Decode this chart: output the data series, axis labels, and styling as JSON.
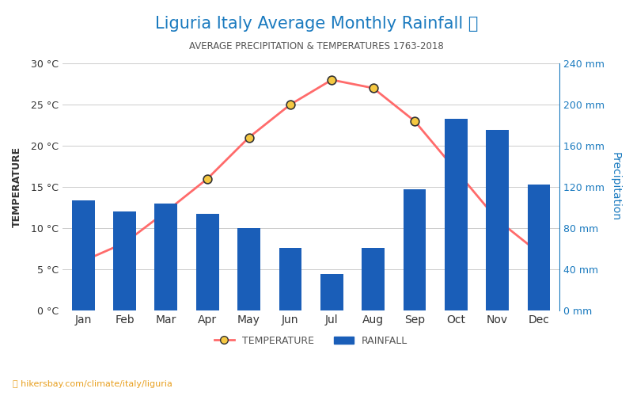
{
  "title": "Liguria Italy Average Monthly Rainfall 🌧",
  "subtitle": "AVERAGE PRECIPITATION & TEMPERATURES 1763-2018",
  "months": [
    "Jan",
    "Feb",
    "Mar",
    "Apr",
    "May",
    "Jun",
    "Jul",
    "Aug",
    "Sep",
    "Oct",
    "Nov",
    "Dec"
  ],
  "rainfall_mm": [
    107,
    96,
    104,
    94,
    80,
    61,
    35,
    61,
    118,
    186,
    175,
    122
  ],
  "temperature_c": [
    6.0,
    8.2,
    12.0,
    16.0,
    21.0,
    25.0,
    28.0,
    27.0,
    23.0,
    17.0,
    11.0,
    7.0
  ],
  "bar_color": "#1a5eb8",
  "line_color": "#ff6b6b",
  "marker_face": "#f5c842",
  "marker_edge": "#333333",
  "title_color": "#1a7abf",
  "subtitle_color": "#555555",
  "left_axis_color": "#333333",
  "right_axis_color": "#1a7abf",
  "temp_ylim": [
    0,
    30
  ],
  "rain_ylim": [
    0,
    240
  ],
  "temp_yticks": [
    0,
    5,
    10,
    15,
    20,
    25,
    30
  ],
  "temp_ytick_labels": [
    "0 °C",
    "5 °C",
    "10 °C",
    "15 °C",
    "20 °C",
    "25 °C",
    "30 °C"
  ],
  "rain_yticks": [
    0,
    40,
    80,
    120,
    160,
    200,
    240
  ],
  "rain_ytick_labels": [
    "0 mm",
    "40 mm",
    "80 mm",
    "120 mm",
    "160 mm",
    "200 mm",
    "240 mm"
  ],
  "xlabel_left": "TEMPERATURE",
  "xlabel_right": "Precipitation",
  "watermark": "hikersbay.com/climate/italy/liguria",
  "background_color": "#ffffff"
}
